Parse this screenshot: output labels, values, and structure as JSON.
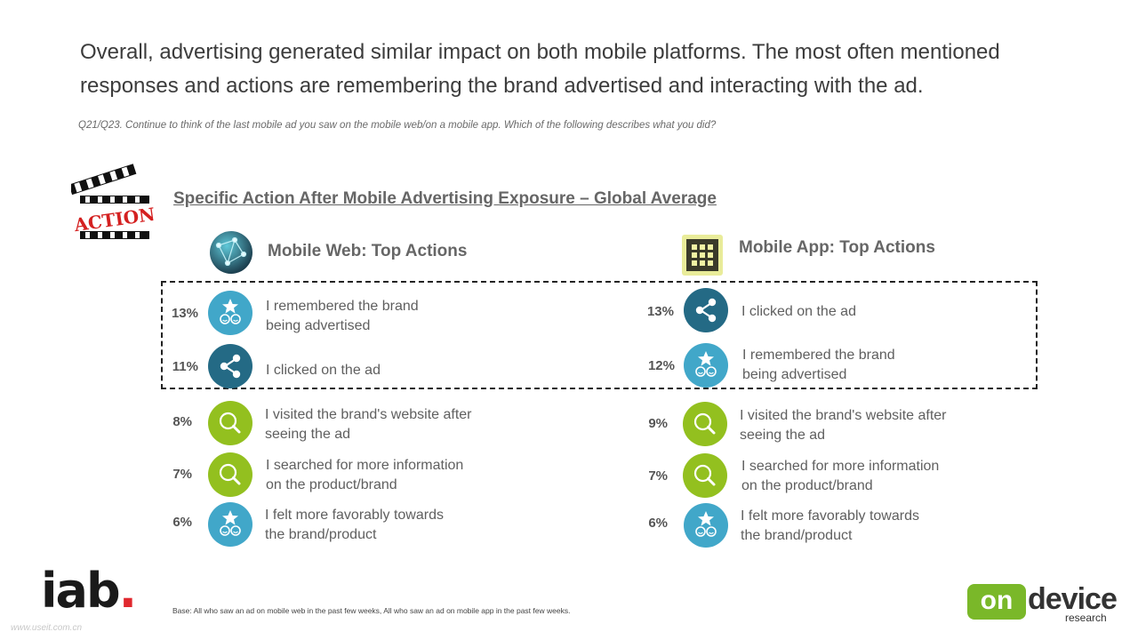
{
  "headline": "Overall, advertising generated similar impact on both mobile platforms. The most often mentioned responses and actions are remembering the brand advertised and interacting with the ad.",
  "question": "Q21/Q23. Continue to think of the last mobile ad you saw on the mobile web/on a mobile app. Which of the following describes what you did?",
  "section_title": "Specific Action After Mobile Advertising Exposure – Global Average",
  "action_badge": "ACTION",
  "mobile_web": {
    "title": "Mobile Web: Top Actions",
    "items": [
      {
        "pct": "13%",
        "line1": "I remembered the brand",
        "line2": "being advertised",
        "icon": "star-eyes-icon"
      },
      {
        "pct": "11%",
        "line1": "I clicked on the ad",
        "line2": "",
        "icon": "share-icon"
      },
      {
        "pct": "8%",
        "line1": "I visited the brand's website after",
        "line2": "seeing the ad",
        "icon": "magnifier-icon"
      },
      {
        "pct": "7%",
        "line1": "I searched for more information",
        "line2": "on the product/brand",
        "icon": "magnifier-icon"
      },
      {
        "pct": "6%",
        "line1": "I felt more favorably towards",
        "line2": "the brand/product",
        "icon": "star-eyes-icon"
      }
    ]
  },
  "mobile_app": {
    "title": "Mobile App: Top Actions",
    "items": [
      {
        "pct": "13%",
        "line1": "I clicked on the ad",
        "line2": "",
        "icon": "share-icon"
      },
      {
        "pct": "12%",
        "line1": "I remembered the brand",
        "line2": "being advertised",
        "icon": "star-eyes-icon"
      },
      {
        "pct": "9%",
        "line1": "I visited the brand's website after",
        "line2": "seeing the ad",
        "icon": "magnifier-icon"
      },
      {
        "pct": "7%",
        "line1": "I searched for more information",
        "line2": "on the product/brand",
        "icon": "magnifier-icon"
      },
      {
        "pct": "6%",
        "line1": "I felt more favorably towards",
        "line2": "the brand/product",
        "icon": "star-eyes-icon"
      }
    ]
  },
  "base_note": "Base: All who saw an ad on mobile web in the past few weeks, All who saw an ad on mobile app in the past few weeks.",
  "logos": {
    "iab": "iab",
    "iab_dot": ".",
    "od_on": "on",
    "od_device": "device",
    "od_research": "research"
  },
  "watermark": "www.useit.com.cn",
  "colors": {
    "star_blue": "#41a7c9",
    "share_dark": "#246a85",
    "search_green": "#93c01f"
  }
}
